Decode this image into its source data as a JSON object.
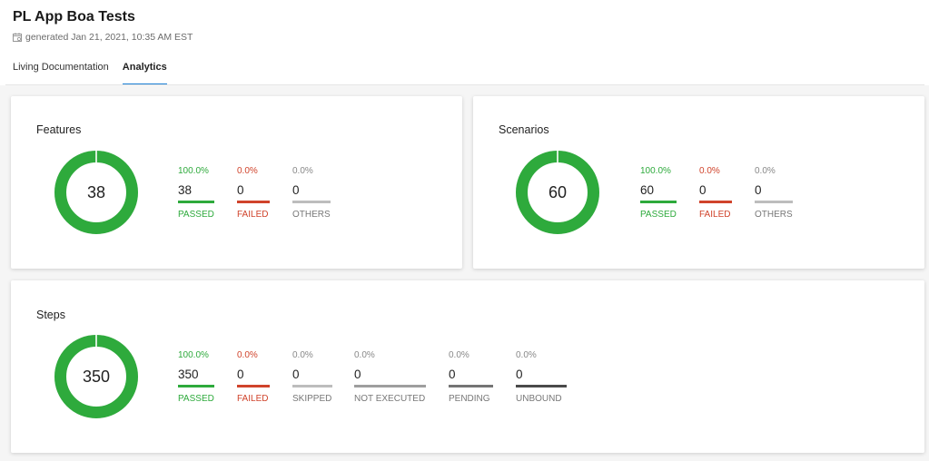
{
  "header": {
    "title": "PL App Boa Tests",
    "generated": "generated Jan 21, 2021, 10:35 AM EST",
    "tabs": [
      {
        "label": "Living Documentation",
        "active": false
      },
      {
        "label": "Analytics",
        "active": true
      }
    ]
  },
  "colors": {
    "passed": "#2eaa3c",
    "failed": "#d0432b",
    "others": "#bdbdbd",
    "skipped": "#bdbdbd",
    "not_executed": "#9e9e9e",
    "pending": "#757575",
    "unbound": "#4a4a4a",
    "tab_accent": "#1a7fd4"
  },
  "features": {
    "title": "Features",
    "total": "38",
    "passed_fraction": 1.0,
    "stats": [
      {
        "pct": "100.0%",
        "count": "38",
        "label": "PASSED"
      },
      {
        "pct": "0.0%",
        "count": "0",
        "label": "FAILED"
      },
      {
        "pct": "0.0%",
        "count": "0",
        "label": "OTHERS"
      }
    ]
  },
  "scenarios": {
    "title": "Scenarios",
    "total": "60",
    "passed_fraction": 1.0,
    "stats": [
      {
        "pct": "100.0%",
        "count": "60",
        "label": "PASSED"
      },
      {
        "pct": "0.0%",
        "count": "0",
        "label": "FAILED"
      },
      {
        "pct": "0.0%",
        "count": "0",
        "label": "OTHERS"
      }
    ]
  },
  "steps": {
    "title": "Steps",
    "total": "350",
    "passed_fraction": 1.0,
    "stats": [
      {
        "pct": "100.0%",
        "count": "350",
        "label": "PASSED"
      },
      {
        "pct": "0.0%",
        "count": "0",
        "label": "FAILED"
      },
      {
        "pct": "0.0%",
        "count": "0",
        "label": "SKIPPED"
      },
      {
        "pct": "0.0%",
        "count": "0",
        "label": "NOT EXECUTED"
      },
      {
        "pct": "0.0%",
        "count": "0",
        "label": "PENDING"
      },
      {
        "pct": "0.0%",
        "count": "0",
        "label": "UNBOUND"
      }
    ]
  }
}
